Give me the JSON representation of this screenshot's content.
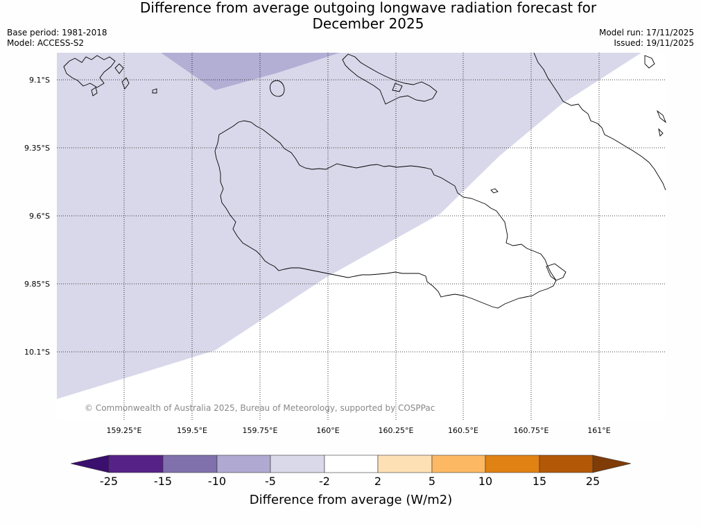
{
  "title": {
    "line1": "Difference from average outgoing longwave radiation forecast for",
    "line2": "December 2025"
  },
  "meta": {
    "base_period": "Base period: 1981-2018",
    "model": "Model: ACCESS-S2",
    "model_run": "Model run: 17/11/2025",
    "issued": "Issued: 19/11/2025"
  },
  "map": {
    "lat_labels": [
      "9.1°S",
      "9.35°S",
      "9.6°S",
      "9.85°S",
      "10.1°S"
    ],
    "lon_labels": [
      "159.25°E",
      "159.5°E",
      "159.75°E",
      "160°E",
      "160.25°E",
      "160.5°E",
      "160.75°E",
      "161°E"
    ],
    "copyright": "© Commonwealth of Australia 2025, Bureau of Meteorology, supported by COSPPac",
    "fill_colors": {
      "minus5_to_minus2": "#d8d8ea",
      "minus10_to_minus5": "#b2aed4",
      "neutral": "#ffffff"
    }
  },
  "colorbar": {
    "title": "Difference from average (W/m2)",
    "tick_labels": [
      "-25",
      "-15",
      "-10",
      "-5",
      "-2",
      "2",
      "5",
      "10",
      "15",
      "25"
    ],
    "colors": [
      "#3a0f6e",
      "#572287",
      "#8071ad",
      "#b0aad2",
      "#d9d9ea",
      "#ffffff",
      "#fee0b5",
      "#fdb863",
      "#e08214",
      "#b35806",
      "#7f3b08"
    ]
  }
}
